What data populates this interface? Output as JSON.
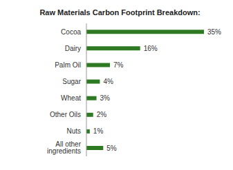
{
  "chart_data": {
    "type": "bar",
    "title": "Raw Materials Carbon Footprint Breakdown:",
    "orientation": "horizontal",
    "categories": [
      "Cocoa",
      "Dairy",
      "Palm Oil",
      "Sugar",
      "Wheat",
      "Other Oils",
      "Nuts",
      "All other ingredients"
    ],
    "values": [
      35,
      16,
      7,
      4,
      3,
      2,
      1,
      5
    ],
    "value_labels": [
      "35%",
      "16%",
      "7%",
      "4%",
      "3%",
      "2%",
      "1%",
      "5%"
    ],
    "color": "#2e7a22",
    "data_labels": true,
    "tick_labels": "y",
    "grid": false
  }
}
